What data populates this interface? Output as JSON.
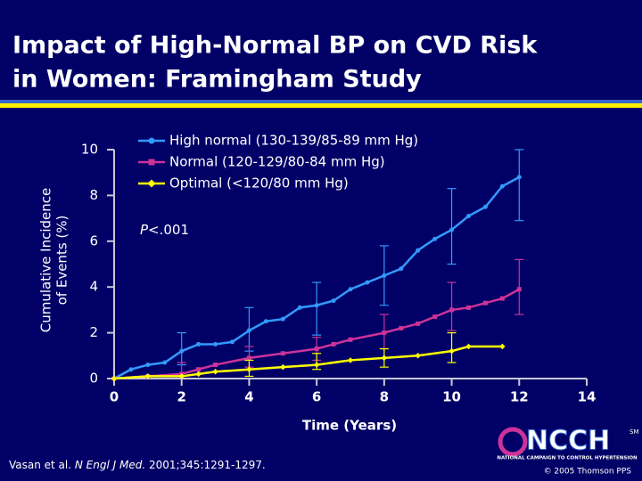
{
  "chart_data": {
    "type": "line",
    "title_lines": [
      "Impact of High-Normal BP on CVD Risk",
      "in Women: Framingham Study"
    ],
    "xlabel": "Time (Years)",
    "ylabel_lines": [
      "Cumulative Incidence",
      "of Events (%)"
    ],
    "annotation": [
      "P",
      "<.001"
    ],
    "xlim": [
      0,
      14
    ],
    "xticks": [
      0,
      2,
      4,
      6,
      8,
      10,
      12,
      14
    ],
    "ylim": [
      0,
      10
    ],
    "yticks": [
      0,
      2,
      4,
      6,
      8,
      10
    ],
    "legend": "top",
    "series": [
      {
        "name": "High normal (130-139/85-89 mm Hg)",
        "color": "#3399ff",
        "marker": "circle",
        "x": [
          0,
          0.5,
          1,
          1.5,
          2,
          2.5,
          3,
          3.5,
          4,
          4.5,
          5,
          5.5,
          6,
          6.5,
          7,
          7.5,
          8,
          8.5,
          9,
          9.5,
          10,
          10.5,
          11,
          11.5,
          12
        ],
        "values": [
          0,
          0.4,
          0.6,
          0.7,
          1.2,
          1.5,
          1.5,
          1.6,
          2.1,
          2.5,
          2.6,
          3.1,
          3.2,
          3.4,
          3.9,
          4.2,
          4.5,
          4.8,
          5.6,
          6.1,
          6.5,
          7.1,
          7.5,
          8.4,
          8.8
        ],
        "error_bars": [
          {
            "x": 2,
            "low": 0.6,
            "high": 2.0
          },
          {
            "x": 4,
            "low": 1.2,
            "high": 3.1
          },
          {
            "x": 6,
            "low": 1.9,
            "high": 4.2
          },
          {
            "x": 8,
            "low": 3.2,
            "high": 5.8
          },
          {
            "x": 10,
            "low": 5.0,
            "high": 8.3
          },
          {
            "x": 12,
            "low": 6.9,
            "high": 10.0
          }
        ]
      },
      {
        "name": "Normal (120-129/80-84 mm Hg)",
        "color": "#cc3399",
        "marker": "square",
        "x": [
          0,
          1,
          2,
          2.5,
          3,
          4,
          5,
          6,
          6.5,
          7,
          8,
          8.5,
          9,
          9.5,
          10,
          10.5,
          11,
          11.5,
          12
        ],
        "values": [
          0,
          0.1,
          0.2,
          0.4,
          0.6,
          0.9,
          1.1,
          1.3,
          1.5,
          1.7,
          2.0,
          2.2,
          2.4,
          2.7,
          3.0,
          3.1,
          3.3,
          3.5,
          3.9
        ],
        "error_bars": [
          {
            "x": 2,
            "low": 0.1,
            "high": 0.7
          },
          {
            "x": 4,
            "low": 0.5,
            "high": 1.4
          },
          {
            "x": 6,
            "low": 0.8,
            "high": 1.8
          },
          {
            "x": 8,
            "low": 1.3,
            "high": 2.8
          },
          {
            "x": 10,
            "low": 2.1,
            "high": 4.2
          },
          {
            "x": 12,
            "low": 2.8,
            "high": 5.2
          }
        ]
      },
      {
        "name": "Optimal (<120/80 mm Hg)",
        "color": "#ffff00",
        "marker": "diamond",
        "x": [
          0,
          1,
          2,
          2.5,
          3,
          4,
          5,
          6,
          7,
          8,
          9,
          10,
          10.5,
          11.5
        ],
        "values": [
          0,
          0.1,
          0.1,
          0.2,
          0.3,
          0.4,
          0.5,
          0.6,
          0.8,
          0.9,
          1.0,
          1.2,
          1.4,
          1.4
        ],
        "error_bars": [
          {
            "x": 4,
            "low": 0.1,
            "high": 0.8
          },
          {
            "x": 6,
            "low": 0.4,
            "high": 1.1
          },
          {
            "x": 8,
            "low": 0.5,
            "high": 1.3
          },
          {
            "x": 10,
            "low": 0.7,
            "high": 2.0
          }
        ]
      }
    ]
  },
  "footer": {
    "citation": [
      "Vasan et al. ",
      "N Engl J Med.",
      " 2001;345:1291-1297."
    ],
    "logo": "NCCH",
    "logo_mark": "SM",
    "logo_subtitle": "NATIONAL CAMPAIGN TO CONTROL HYPERTENSION",
    "copyright": "© 2005 Thomson PPS"
  }
}
